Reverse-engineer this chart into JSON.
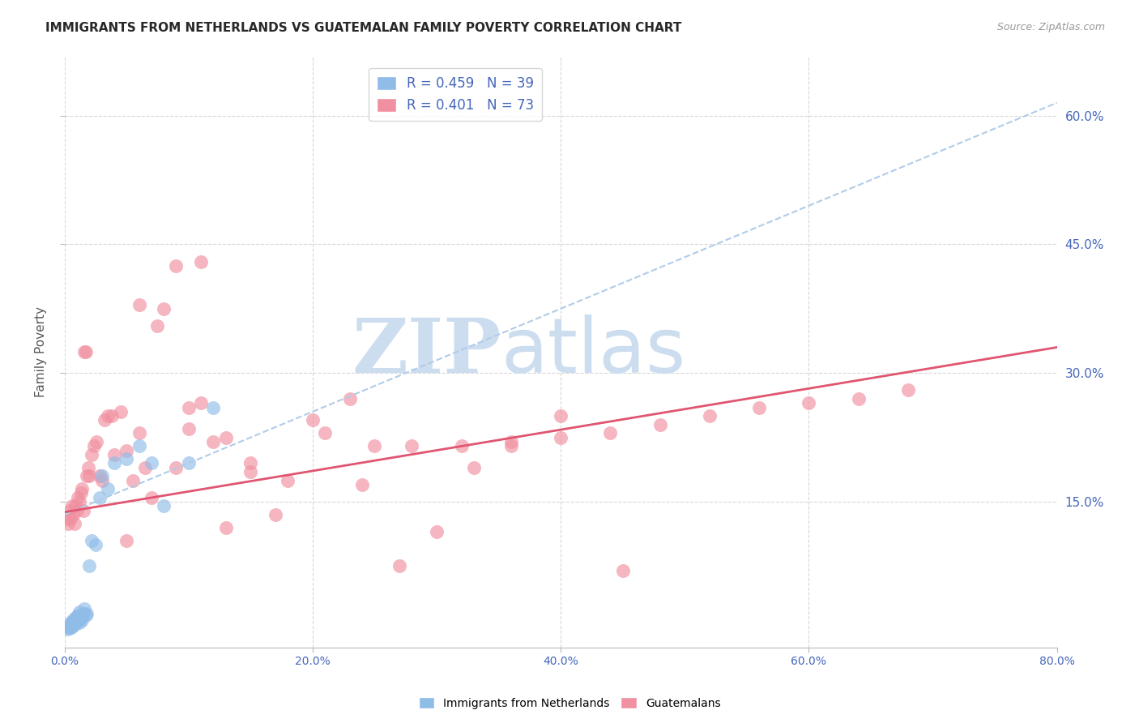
{
  "title": "IMMIGRANTS FROM NETHERLANDS VS GUATEMALAN FAMILY POVERTY CORRELATION CHART",
  "source": "Source: ZipAtlas.com",
  "ylabel": "Family Poverty",
  "ytick_labels": [
    "15.0%",
    "30.0%",
    "45.0%",
    "60.0%"
  ],
  "ytick_values": [
    0.15,
    0.3,
    0.45,
    0.6
  ],
  "xlim": [
    0.0,
    0.8
  ],
  "ylim": [
    -0.02,
    0.67
  ],
  "legend_line1": "R = 0.459   N = 39",
  "legend_line2": "R = 0.401   N = 73",
  "series1_label": "Immigrants from Netherlands",
  "series2_label": "Guatemalans",
  "series1_color": "#90bce8",
  "series2_color": "#f090a0",
  "series1_line_color": "#5580cc",
  "series2_line_color": "#e05570",
  "trendline_dashed_color": "#b0cce8",
  "background_color": "#ffffff",
  "grid_color": "#d8d8d8",
  "watermark_zip": "ZIP",
  "watermark_atlas": "atlas",
  "watermark_color": "#ccddf0",
  "title_color": "#282828",
  "axis_label_color": "#4466bb",
  "legend_color": "#4466bb",
  "series1_x": [
    0.002,
    0.003,
    0.004,
    0.004,
    0.005,
    0.005,
    0.006,
    0.006,
    0.007,
    0.007,
    0.008,
    0.008,
    0.009,
    0.009,
    0.01,
    0.01,
    0.011,
    0.011,
    0.012,
    0.012,
    0.013,
    0.014,
    0.015,
    0.016,
    0.017,
    0.018,
    0.02,
    0.022,
    0.025,
    0.028,
    0.03,
    0.035,
    0.04,
    0.05,
    0.06,
    0.07,
    0.08,
    0.1,
    0.12
  ],
  "series1_y": [
    0.002,
    0.005,
    0.003,
    0.008,
    0.004,
    0.007,
    0.005,
    0.01,
    0.006,
    0.012,
    0.007,
    0.013,
    0.008,
    0.015,
    0.01,
    0.016,
    0.012,
    0.018,
    0.009,
    0.022,
    0.015,
    0.012,
    0.02,
    0.025,
    0.018,
    0.02,
    0.075,
    0.105,
    0.1,
    0.155,
    0.18,
    0.165,
    0.195,
    0.2,
    0.215,
    0.195,
    0.145,
    0.195,
    0.26
  ],
  "series2_x": [
    0.002,
    0.003,
    0.004,
    0.005,
    0.006,
    0.007,
    0.008,
    0.009,
    0.01,
    0.011,
    0.012,
    0.013,
    0.014,
    0.015,
    0.016,
    0.017,
    0.018,
    0.019,
    0.02,
    0.022,
    0.024,
    0.026,
    0.028,
    0.03,
    0.032,
    0.035,
    0.038,
    0.04,
    0.045,
    0.05,
    0.055,
    0.06,
    0.065,
    0.07,
    0.08,
    0.09,
    0.1,
    0.11,
    0.12,
    0.13,
    0.15,
    0.17,
    0.2,
    0.23,
    0.25,
    0.28,
    0.32,
    0.36,
    0.4,
    0.44,
    0.48,
    0.52,
    0.56,
    0.6,
    0.64,
    0.68,
    0.05,
    0.06,
    0.075,
    0.09,
    0.1,
    0.11,
    0.13,
    0.15,
    0.18,
    0.21,
    0.24,
    0.27,
    0.3,
    0.33,
    0.36,
    0.4,
    0.45
  ],
  "series2_y": [
    0.13,
    0.125,
    0.14,
    0.13,
    0.145,
    0.135,
    0.125,
    0.145,
    0.14,
    0.155,
    0.15,
    0.16,
    0.165,
    0.14,
    0.325,
    0.325,
    0.18,
    0.19,
    0.18,
    0.205,
    0.215,
    0.22,
    0.18,
    0.175,
    0.245,
    0.25,
    0.25,
    0.205,
    0.255,
    0.21,
    0.175,
    0.23,
    0.19,
    0.155,
    0.375,
    0.425,
    0.235,
    0.265,
    0.22,
    0.225,
    0.185,
    0.135,
    0.245,
    0.27,
    0.215,
    0.215,
    0.215,
    0.22,
    0.225,
    0.23,
    0.24,
    0.25,
    0.26,
    0.265,
    0.27,
    0.28,
    0.105,
    0.38,
    0.355,
    0.19,
    0.26,
    0.43,
    0.12,
    0.195,
    0.175,
    0.23,
    0.17,
    0.075,
    0.115,
    0.19,
    0.215,
    0.25,
    0.07
  ],
  "trendline1_x0": 0.0,
  "trendline1_y0": 0.135,
  "trendline1_x1": 0.8,
  "trendline1_y1": 0.615,
  "trendline2_x0": 0.0,
  "trendline2_y0": 0.138,
  "trendline2_x1": 0.8,
  "trendline2_y1": 0.33
}
